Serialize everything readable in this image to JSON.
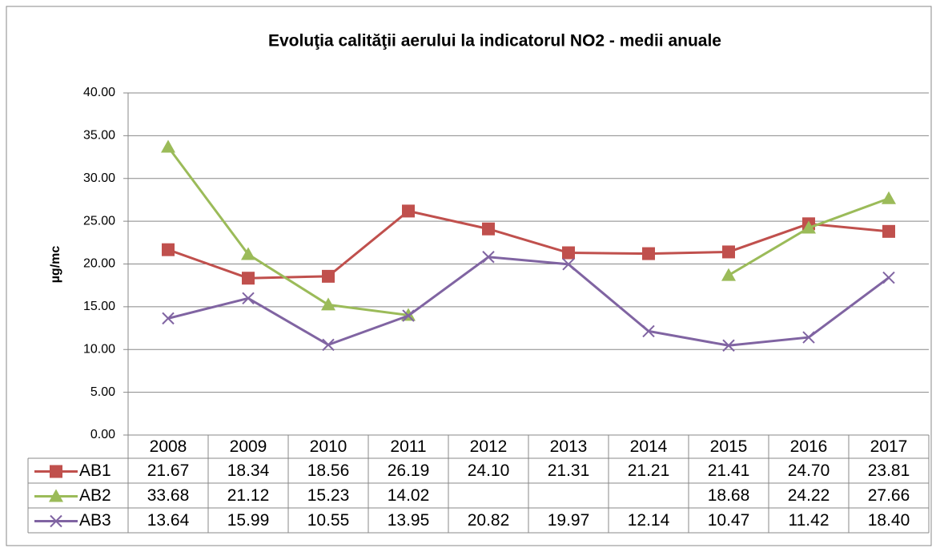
{
  "chart_data": {
    "type": "line",
    "title": "Evoluţia calităţii aerului la indicatorul NO2 - medii anuale",
    "y_label": "µg/mc",
    "categories": [
      "2008",
      "2009",
      "2010",
      "2011",
      "2012",
      "2013",
      "2014",
      "2015",
      "2016",
      "2017"
    ],
    "series": [
      {
        "name": "AB1",
        "color": "#c0504d",
        "marker": "square",
        "values": [
          21.67,
          18.34,
          18.56,
          26.19,
          24.1,
          21.31,
          21.21,
          21.41,
          24.7,
          23.81
        ],
        "value_labels": [
          "21.67",
          "18.34",
          "18.56",
          "26.19",
          "24.10",
          "21.31",
          "21.21",
          "21.41",
          "24.70",
          "23.81"
        ]
      },
      {
        "name": "AB2",
        "color": "#9bbb59",
        "marker": "triangle",
        "values": [
          33.68,
          21.12,
          15.23,
          14.02,
          null,
          null,
          null,
          18.68,
          24.22,
          27.66
        ],
        "value_labels": [
          "33.68",
          "21.12",
          "15.23",
          "14.02",
          null,
          null,
          null,
          "18.68",
          "24.22",
          "27.66"
        ]
      },
      {
        "name": "AB3",
        "color": "#8064a2",
        "marker": "x",
        "values": [
          13.64,
          15.99,
          10.55,
          13.95,
          20.82,
          19.97,
          12.14,
          10.47,
          11.42,
          18.4
        ],
        "value_labels": [
          "13.64",
          "15.99",
          "10.55",
          "13.95",
          "20.82",
          "19.97",
          "12.14",
          "10.47",
          "11.42",
          "18.40"
        ]
      }
    ],
    "ylim": [
      0,
      40
    ],
    "yticks": [
      {
        "value": 0,
        "label": "0.00"
      },
      {
        "value": 5,
        "label": "5.00"
      },
      {
        "value": 10,
        "label": "10.00"
      },
      {
        "value": 15,
        "label": "15.00"
      },
      {
        "value": 20,
        "label": "20.00"
      },
      {
        "value": 25,
        "label": "25.00"
      },
      {
        "value": 30,
        "label": "30.00"
      },
      {
        "value": 35,
        "label": "35.00"
      },
      {
        "value": 40,
        "label": "40.00"
      }
    ],
    "grid": true,
    "data_table": true
  }
}
